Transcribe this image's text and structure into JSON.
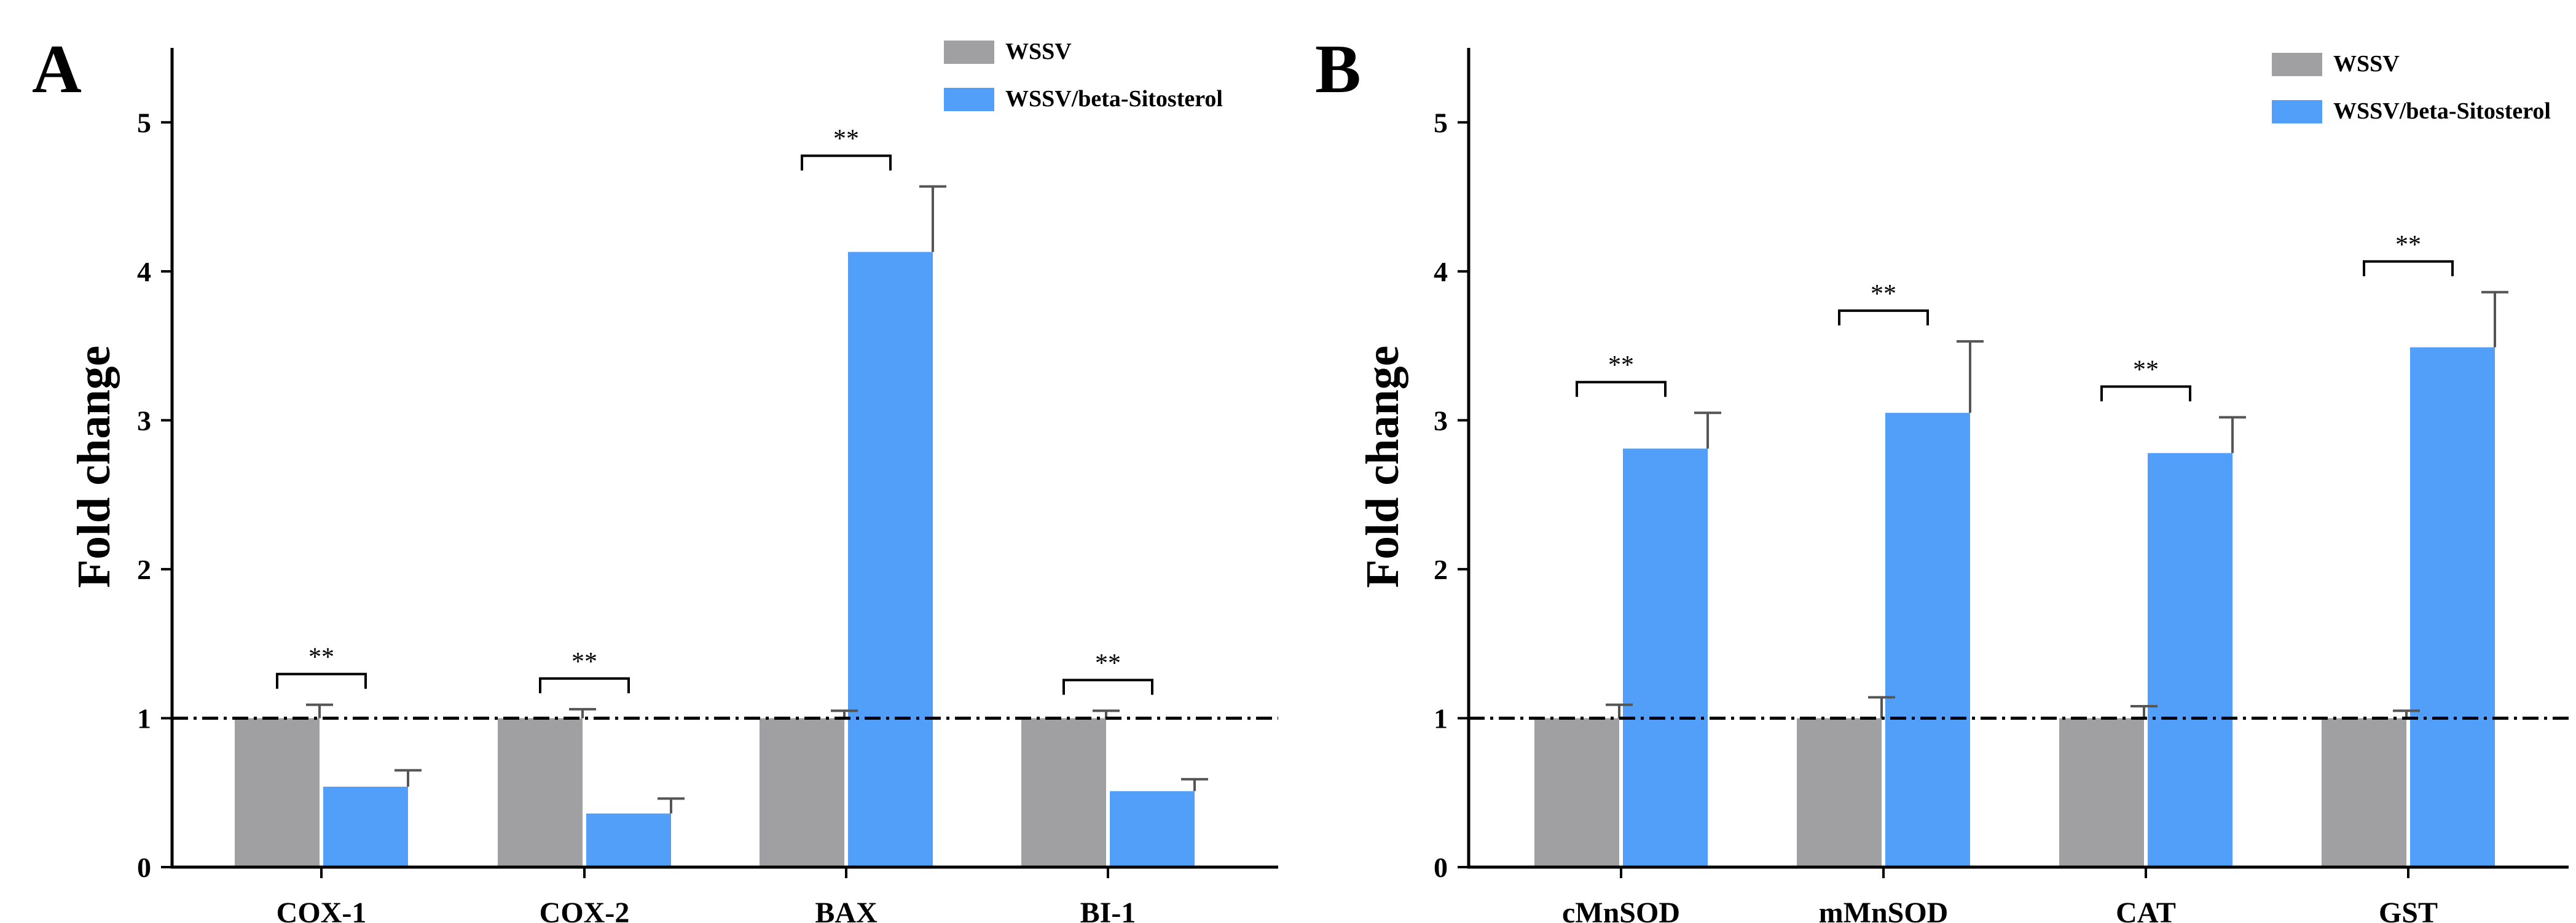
{
  "chart_data": [
    {
      "type": "bar",
      "panel_label": "A",
      "title": "",
      "xlabel": "",
      "ylabel": "Fold change",
      "ylim": [
        0,
        5.5
      ],
      "y_ticks": [
        0,
        1,
        2,
        3,
        4,
        5
      ],
      "reference_line": 1,
      "categories": [
        "COX-1",
        "COX-2",
        "BAX",
        "BI-1"
      ],
      "series": [
        {
          "name": "WSSV",
          "color": "#a0a0a3",
          "values": [
            1.0,
            1.0,
            1.0,
            1.0
          ],
          "errors": [
            0.09,
            0.06,
            0.05,
            0.05
          ]
        },
        {
          "name": "WSSV/beta-Sitosterol",
          "color": "#529ffa",
          "values": [
            0.54,
            0.36,
            4.13,
            0.51
          ],
          "errors": [
            0.11,
            0.1,
            0.44,
            0.08
          ]
        }
      ],
      "significance": [
        "**",
        "**",
        "**",
        "**"
      ],
      "legend_position": "top-right",
      "grid": false
    },
    {
      "type": "bar",
      "panel_label": "B",
      "title": "",
      "xlabel": "",
      "ylabel": "Fold change",
      "ylim": [
        0,
        5.5
      ],
      "y_ticks": [
        0,
        1,
        2,
        3,
        4,
        5
      ],
      "reference_line": 1,
      "categories": [
        "cMnSOD",
        "mMnSOD",
        "CAT",
        "GST"
      ],
      "series": [
        {
          "name": "WSSV",
          "color": "#a0a0a3",
          "values": [
            1.0,
            1.0,
            1.0,
            1.0
          ],
          "errors": [
            0.09,
            0.14,
            0.08,
            0.05
          ]
        },
        {
          "name": "WSSV/beta-Sitosterol",
          "color": "#529ffa",
          "values": [
            2.81,
            3.05,
            2.78,
            3.49
          ],
          "errors": [
            0.24,
            0.48,
            0.24,
            0.37
          ]
        }
      ],
      "significance": [
        "**",
        "**",
        "**",
        "**"
      ],
      "legend_position": "top-right",
      "grid": false
    }
  ]
}
